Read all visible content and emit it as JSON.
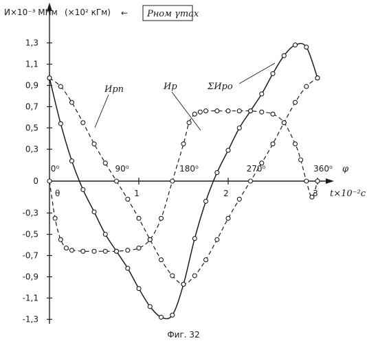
{
  "header": {
    "y_unit": "И×10⁻³ МНм",
    "y_unit_alt": "(×10² кГм)",
    "arrow": "←",
    "box_label": "Pном γmax"
  },
  "caption": "Фиг. 32",
  "chart_data": {
    "type": "line",
    "xlabel": "t×10⁻²c",
    "phase_label": "φ",
    "xlim": [
      0,
      3.05
    ],
    "ylim": [
      -1.3,
      1.3
    ],
    "grid": false,
    "y_ticks": [
      {
        "value": 1.3,
        "label": "1,3"
      },
      {
        "value": 1.1,
        "label": "1,1"
      },
      {
        "value": 0.9,
        "label": "0,9"
      },
      {
        "value": 0.7,
        "label": "0,7"
      },
      {
        "value": 0.5,
        "label": "0,5"
      },
      {
        "value": 0.3,
        "label": "0,3"
      },
      {
        "value": 0.0,
        "label": "0"
      },
      {
        "value": -0.3,
        "label": "-0,3"
      },
      {
        "value": -0.5,
        "label": "-0,5"
      },
      {
        "value": -0.7,
        "label": "-0,7"
      },
      {
        "value": -0.9,
        "label": "-0,9"
      },
      {
        "value": -1.1,
        "label": "-1,1"
      },
      {
        "value": -1.3,
        "label": "-1,3"
      }
    ],
    "x_ticks": [
      {
        "value": 0,
        "label": "0"
      },
      {
        "value": 1,
        "label": "1"
      },
      {
        "value": 2,
        "label": "2"
      },
      {
        "value": 3,
        "label": "3"
      }
    ],
    "phase_ticks": [
      {
        "value": 0,
        "label": "0⁰"
      },
      {
        "value": 0.75,
        "label": "90⁰"
      },
      {
        "value": 1.5,
        "label": "180⁰"
      },
      {
        "value": 2.25,
        "label": "270⁰"
      },
      {
        "value": 3,
        "label": "360⁰"
      }
    ],
    "series": [
      {
        "name": "Ирп",
        "style": "dashed",
        "x": [
          0,
          0.125,
          0.25,
          0.375,
          0.5,
          0.625,
          0.75,
          0.875,
          1.0,
          1.125,
          1.25,
          1.375,
          1.5,
          1.625,
          1.75,
          1.875,
          2.0,
          2.125,
          2.25,
          2.375,
          2.5,
          2.625,
          2.75,
          2.875,
          3.0
        ],
        "y": [
          0.97,
          0.89,
          0.74,
          0.55,
          0.35,
          0.17,
          0.0,
          -0.17,
          -0.35,
          -0.55,
          -0.74,
          -0.89,
          -0.97,
          -0.89,
          -0.74,
          -0.55,
          -0.35,
          -0.17,
          0.0,
          0.17,
          0.35,
          0.55,
          0.74,
          0.89,
          0.97
        ]
      },
      {
        "name": "Ир",
        "style": "dashed",
        "x": [
          0,
          0.0625,
          0.125,
          0.1875,
          0.25,
          0.375,
          0.5,
          0.625,
          0.75,
          0.875,
          1.0,
          1.125,
          1.25,
          1.375,
          1.5,
          1.5625,
          1.625,
          1.6875,
          1.75,
          1.875,
          2.0,
          2.125,
          2.25,
          2.375,
          2.5,
          2.625,
          2.75,
          2.8125,
          2.875,
          2.9375,
          3.0
        ],
        "y": [
          0,
          -0.35,
          -0.55,
          -0.63,
          -0.65,
          -0.66,
          -0.66,
          -0.66,
          -0.66,
          -0.65,
          -0.63,
          -0.55,
          -0.35,
          0,
          0.35,
          0.55,
          0.63,
          0.65,
          0.66,
          0.66,
          0.66,
          0.66,
          0.66,
          0.65,
          0.63,
          0.55,
          0.35,
          0.2,
          0,
          -0.15,
          0
        ]
      },
      {
        "name": "ΣИро",
        "style": "solid",
        "x": [
          0,
          0.125,
          0.25,
          0.375,
          0.5,
          0.625,
          0.75,
          0.875,
          1.0,
          1.125,
          1.25,
          1.375,
          1.5,
          1.625,
          1.75,
          1.875,
          2.0,
          2.125,
          2.25,
          2.375,
          2.5,
          2.625,
          2.75,
          2.875,
          3.0
        ],
        "y": [
          0.97,
          0.54,
          0.19,
          -0.08,
          -0.29,
          -0.5,
          -0.66,
          -0.82,
          -1.01,
          -1.18,
          -1.28,
          -1.26,
          -0.97,
          -0.54,
          -0.19,
          0.08,
          0.29,
          0.5,
          0.66,
          0.82,
          1.01,
          1.18,
          1.28,
          1.26,
          0.97
        ]
      }
    ],
    "x_note": "θ"
  }
}
